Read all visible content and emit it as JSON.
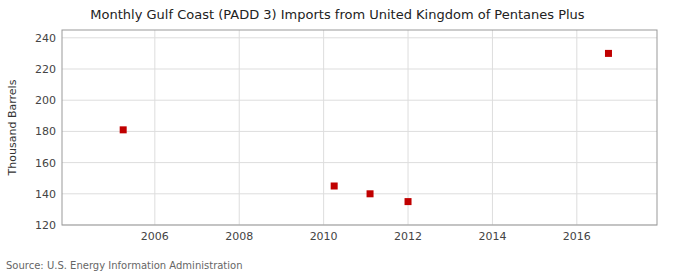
{
  "chart_data": {
    "type": "scatter",
    "title": "Monthly Gulf Coast (PADD 3) Imports from United Kingdom of Pentanes Plus",
    "ylabel": "Thousand Barrels",
    "source": "Source: U.S. Energy Information Administration",
    "x": [
      2005.25,
      2010.25,
      2011.1,
      2012.0,
      2016.75
    ],
    "values": [
      181,
      145,
      140,
      135,
      230
    ],
    "color": "#c00000",
    "marker": "square",
    "xlim": [
      2003.8,
      2017.9
    ],
    "ylim": [
      120,
      245
    ],
    "xticks": [
      2006,
      2008,
      2010,
      2012,
      2014,
      2016
    ],
    "yticks": [
      120,
      140,
      160,
      180,
      200,
      220,
      240
    ],
    "grid": true
  }
}
